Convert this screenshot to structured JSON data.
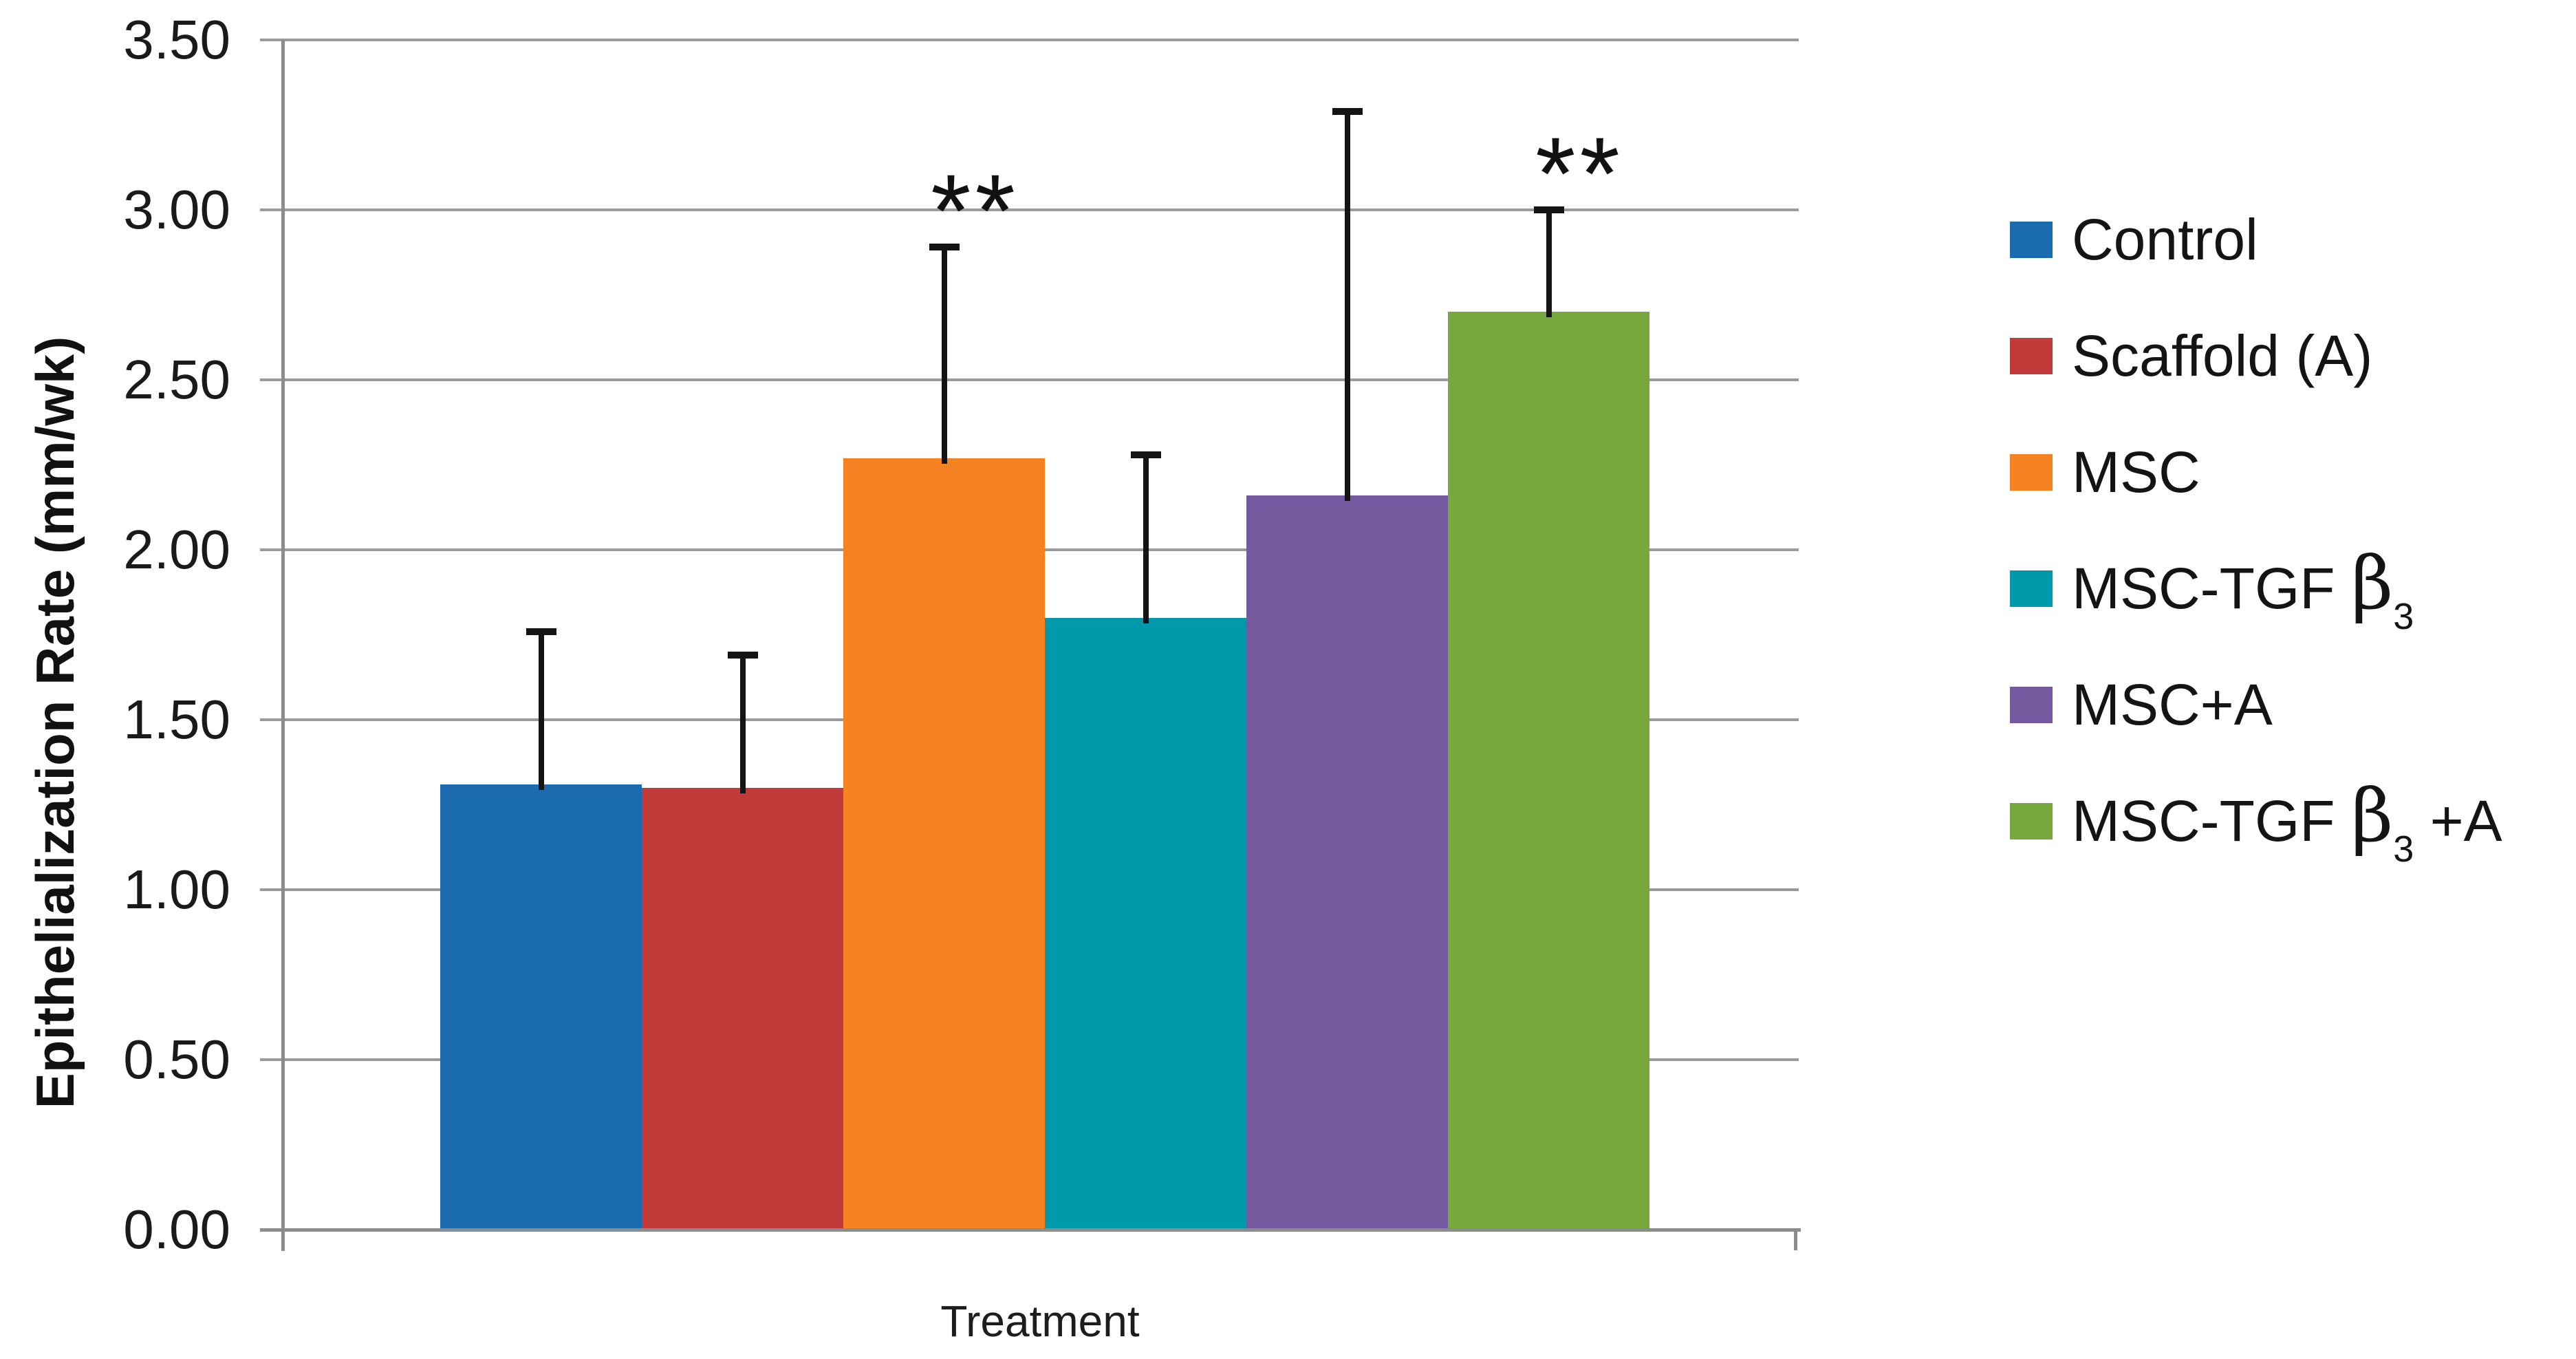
{
  "chart_data": {
    "type": "bar",
    "title": "",
    "xlabel": "Treatment",
    "ylabel": "Epithelialization Rate (mm/wk)",
    "ylim": [
      0,
      3.5
    ],
    "ytick_step": 0.5,
    "ytick_labels": [
      "0.00",
      "0.50",
      "1.00",
      "1.50",
      "2.00",
      "2.50",
      "3.00",
      "3.50"
    ],
    "grid": true,
    "legend_position": "right",
    "error_bars": "upper-only",
    "series": [
      {
        "name": "Control",
        "value": 1.31,
        "error_up": 0.45,
        "color": "#1B6BB0",
        "annotation": ""
      },
      {
        "name": "Scaffold (A)",
        "value": 1.3,
        "error_up": 0.39,
        "color": "#C23A3A",
        "annotation": ""
      },
      {
        "name": "MSC",
        "value": 2.27,
        "error_up": 0.62,
        "color": "#F58220",
        "annotation": "**"
      },
      {
        "name": "MSC-TGF β3",
        "value": 1.8,
        "error_up": 0.48,
        "color": "#0098AB",
        "annotation": ""
      },
      {
        "name": "MSC+A",
        "value": 2.16,
        "error_up": 1.13,
        "color": "#74599F",
        "annotation": ""
      },
      {
        "name": "MSC-TGF β3 +A",
        "value": 2.7,
        "error_up": 0.3,
        "color": "#76A83E",
        "annotation": "**"
      }
    ]
  }
}
